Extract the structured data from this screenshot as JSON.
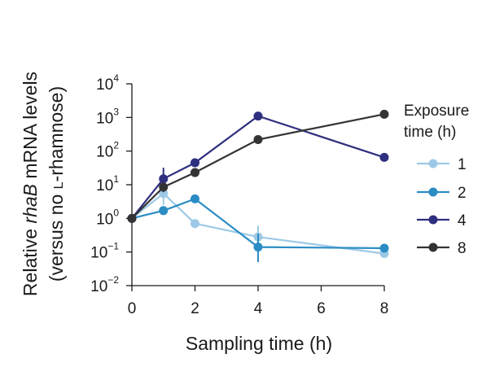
{
  "chart_data": {
    "type": "line",
    "xlabel": "Sampling time (h)",
    "ylabel": {
      "line1_prefix": "Relative ",
      "line1_italic": "rhaB",
      "line1_suffix": " mRNA levels",
      "line2_prefix": "(versus no ",
      "line2_smallcaps": "L",
      "line2_suffix": "-rhamnose)"
    },
    "x_ticks": [
      0,
      2,
      4,
      6,
      8
    ],
    "x_tick_labels": [
      "0",
      "2",
      "4",
      "6",
      "8"
    ],
    "xlim": [
      0,
      8
    ],
    "y_scale": "log",
    "ylim": [
      0.01,
      10000
    ],
    "y_ticks": [
      {
        "base": "10",
        "exp": "4"
      },
      {
        "base": "10",
        "exp": "3"
      },
      {
        "base": "10",
        "exp": "2"
      },
      {
        "base": "10",
        "exp": "1"
      },
      {
        "base": "10",
        "exp": "0"
      },
      {
        "base": "10",
        "exp": "−1"
      },
      {
        "base": "10",
        "exp": "−2"
      }
    ],
    "y_tick_values": [
      10000,
      1000,
      100,
      10,
      1,
      0.1,
      0.01
    ],
    "legend": {
      "title_line1": "Exposure",
      "title_line2": "time (h)",
      "placement": "right"
    },
    "series": [
      {
        "name": "1",
        "color": "#9dc9e6",
        "x": [
          0,
          1,
          2,
          4,
          8
        ],
        "y": [
          1,
          5.5,
          0.7,
          0.28,
          0.09
        ],
        "err_low": [
          null,
          2.5,
          null,
          0.12,
          null
        ],
        "err_high": [
          null,
          12,
          null,
          0.6,
          null
        ]
      },
      {
        "name": "2",
        "color": "#2b8cc4",
        "x": [
          0,
          1,
          2,
          4,
          8
        ],
        "y": [
          1,
          1.7,
          3.8,
          0.14,
          0.13
        ],
        "err_low": [
          null,
          null,
          null,
          0.05,
          null
        ],
        "err_high": [
          null,
          null,
          null,
          0.35,
          null
        ]
      },
      {
        "name": "4",
        "color": "#2e2f7f",
        "x": [
          0,
          1,
          2,
          4,
          8
        ],
        "y": [
          1,
          15,
          45,
          1100,
          65
        ],
        "err_low": [
          null,
          6,
          null,
          null,
          null
        ],
        "err_high": [
          null,
          32,
          null,
          null,
          null
        ]
      },
      {
        "name": "8",
        "color": "#333333",
        "x": [
          0,
          1,
          2,
          4,
          8
        ],
        "y": [
          1,
          8.5,
          23,
          220,
          1250
        ],
        "err_low": [
          null,
          null,
          null,
          null,
          null
        ],
        "err_high": [
          null,
          null,
          null,
          null,
          null
        ]
      }
    ]
  }
}
